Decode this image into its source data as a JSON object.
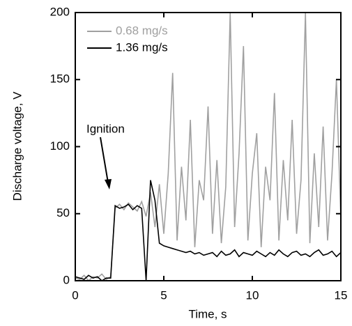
{
  "chart_data": {
    "type": "line",
    "xlabel": "Time, s",
    "ylabel": "Discharge voltage, V",
    "annotations": [
      "Ignition"
    ],
    "xlim": [
      0,
      15
    ],
    "xticks": [
      0,
      5,
      10,
      15
    ],
    "ylim": [
      0,
      200
    ],
    "yticks": [
      0,
      50,
      100,
      150,
      200
    ],
    "x": [
      0,
      0.25,
      0.5,
      0.75,
      1,
      1.25,
      1.5,
      1.75,
      2,
      2.25,
      2.5,
      2.75,
      3,
      3.25,
      3.5,
      3.75,
      4,
      4.25,
      4.5,
      4.75,
      5,
      5.25,
      5.5,
      5.75,
      6,
      6.25,
      6.5,
      6.75,
      7,
      7.25,
      7.5,
      7.75,
      8,
      8.25,
      8.5,
      8.75,
      9,
      9.25,
      9.5,
      9.75,
      10,
      10.25,
      10.5,
      10.75,
      11,
      11.25,
      11.5,
      11.75,
      12,
      12.25,
      12.5,
      12.75,
      13,
      13.25,
      13.5,
      13.75,
      14,
      14.25,
      14.5,
      14.75,
      15
    ],
    "series": [
      {
        "name": "0.68 mg/s",
        "color": "#a0a0a0",
        "values": [
          2,
          1,
          4,
          0,
          3,
          2,
          5,
          1,
          3,
          54,
          57,
          53,
          58,
          55,
          52,
          59,
          48,
          66,
          40,
          72,
          35,
          80,
          155,
          30,
          85,
          45,
          120,
          25,
          75,
          60,
          130,
          35,
          90,
          28,
          70,
          200,
          40,
          95,
          175,
          30,
          80,
          110,
          25,
          85,
          60,
          140,
          30,
          90,
          45,
          120,
          35,
          75,
          200,
          28,
          95,
          40,
          115,
          30,
          80,
          150,
          45
        ]
      },
      {
        "name": "1.36 mg/s",
        "color": "#000000",
        "values": [
          3,
          2,
          1,
          4,
          2,
          3,
          0,
          2,
          2,
          56,
          54,
          55,
          57,
          53,
          56,
          54,
          0,
          75,
          60,
          28,
          26,
          25,
          24,
          23,
          22,
          21,
          22,
          20,
          21,
          19,
          20,
          21,
          18,
          22,
          19,
          20,
          23,
          18,
          21,
          20,
          19,
          22,
          20,
          18,
          21,
          19,
          23,
          20,
          18,
          21,
          22,
          19,
          20,
          18,
          21,
          23,
          19,
          20,
          22,
          18,
          21
        ]
      }
    ],
    "legend": "upper left",
    "grid": false
  }
}
